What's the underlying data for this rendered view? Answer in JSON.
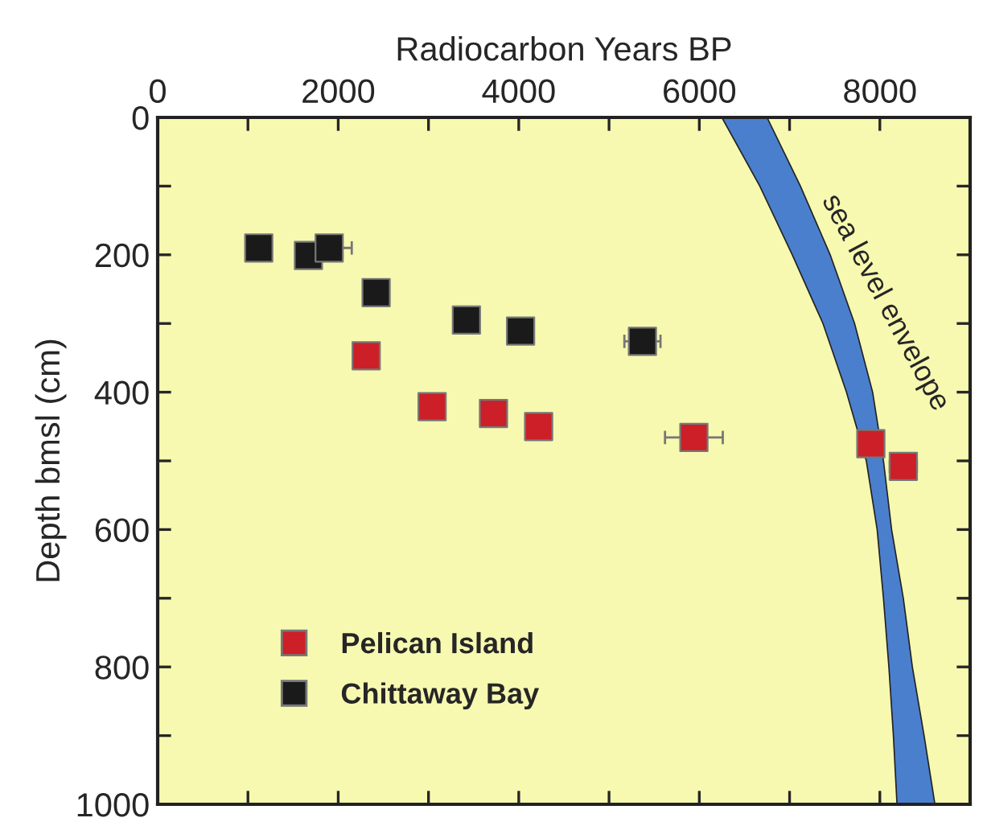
{
  "chart_data": {
    "type": "scatter",
    "xlabel": "Radiocarbon Years BP",
    "ylabel": "Depth bmsl (cm)",
    "xlim": [
      0,
      9000
    ],
    "ylim": [
      1000,
      0
    ],
    "xticks": [
      0,
      {
        "value": 1000,
        "label": null
      },
      2000,
      {
        "value": 3000,
        "label": null
      },
      4000,
      {
        "value": 5000,
        "label": null
      },
      6000,
      {
        "value": 7000,
        "label": null
      },
      8000
    ],
    "yticks": [
      0,
      {
        "value": 100,
        "label": null
      },
      200,
      {
        "value": 300,
        "label": null
      },
      400,
      {
        "value": 500,
        "label": null
      },
      600,
      {
        "value": 700,
        "label": null
      },
      800,
      {
        "value": 900,
        "label": null
      },
      1000
    ],
    "legend": "bottom left",
    "grid": false,
    "series": [
      {
        "type": "area",
        "color": "#4a7fce",
        "x": [
          6250,
          6670,
          7030,
          7370,
          7630,
          7850,
          7970,
          8040,
          8100,
          8150,
          8190,
          8610,
          8490,
          8360,
          8260,
          8130,
          8040,
          7920,
          7720,
          7450,
          7120,
          6750
        ],
        "values": [
          0,
          100,
          200,
          300,
          400,
          500,
          600,
          700,
          800,
          900,
          1000,
          1000,
          900,
          800,
          700,
          600,
          500,
          400,
          300,
          200,
          100,
          0
        ]
      },
      {
        "name": "Pelican Island",
        "marker": "square",
        "color": "#cc1f27",
        "x": [
          2310,
          3040,
          3720,
          4220,
          5940,
          7900,
          8260
        ],
        "values": [
          347,
          421,
          431,
          450,
          466,
          475,
          508
        ],
        "xerrors": [
          null,
          null,
          null,
          null,
          320,
          null,
          150
        ]
      },
      {
        "name": "Chittaway Bay",
        "marker": "square",
        "color": "#1a1a1a",
        "x": [
          1120,
          1670,
          1900,
          2420,
          3420,
          4020,
          5370
        ],
        "values": [
          190,
          201,
          190,
          255,
          295,
          311,
          326
        ],
        "xerrors": [
          null,
          null,
          250,
          null,
          null,
          null,
          200
        ]
      }
    ],
    "annotations": [
      "sea level envelope"
    ]
  }
}
